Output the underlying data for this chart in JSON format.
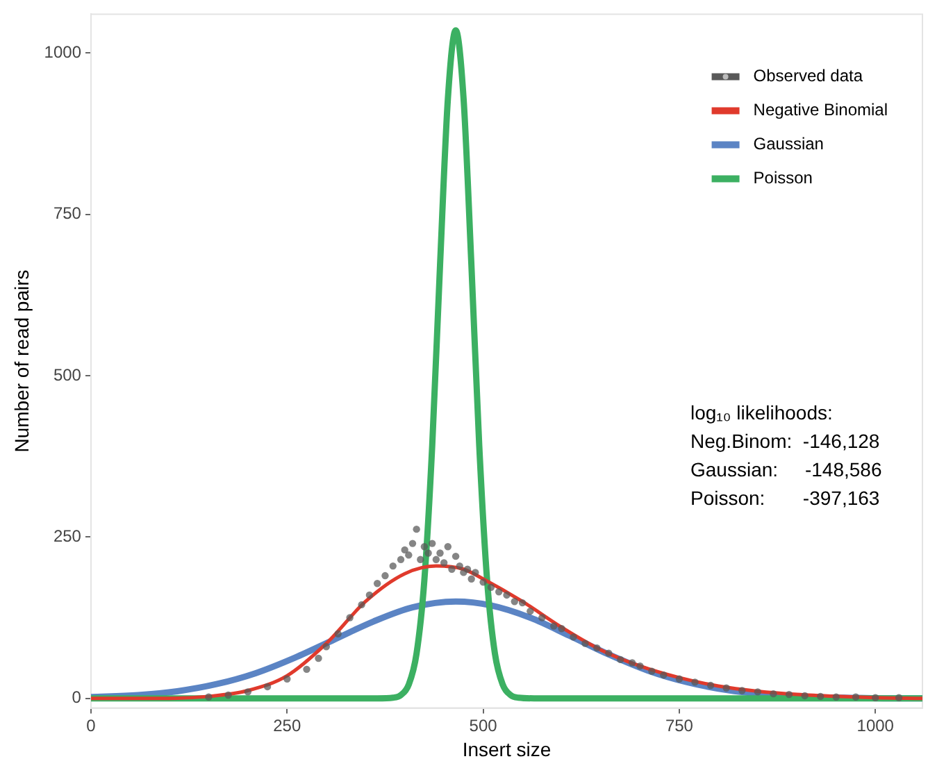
{
  "chart_data": {
    "type": "line",
    "xlabel": "Insert size",
    "ylabel": "Number of read pairs",
    "xlim": [
      0,
      1060
    ],
    "xticks": [
      0,
      250,
      500,
      750,
      1000
    ],
    "ylim": [
      -15,
      1060
    ],
    "yticks": [
      0,
      250,
      500,
      750,
      1000
    ],
    "grid": false,
    "legend": "top right",
    "marker": "none",
    "line_style": "solid",
    "annotations": [
      "log₁₀ likelihoods:",
      "Neg.Binom:  -146,128",
      "Gaussian:     -148,586",
      "Poisson:       -397,163"
    ],
    "series": [
      {
        "name": "Observed data",
        "type": "scatter",
        "marker": "circle",
        "color": "#595959",
        "x": [
          150,
          175,
          200,
          225,
          250,
          275,
          290,
          300,
          315,
          330,
          345,
          355,
          365,
          375,
          385,
          395,
          400,
          405,
          410,
          415,
          420,
          425,
          430,
          435,
          440,
          445,
          450,
          455,
          460,
          465,
          470,
          475,
          480,
          485,
          490,
          500,
          510,
          520,
          530,
          540,
          550,
          560,
          575,
          590,
          600,
          615,
          630,
          645,
          660,
          675,
          690,
          700,
          715,
          730,
          750,
          770,
          790,
          810,
          830,
          850,
          870,
          890,
          910,
          930,
          950,
          975,
          1000,
          1030
        ],
        "values": [
          2,
          5,
          10,
          18,
          30,
          45,
          62,
          80,
          100,
          125,
          145,
          160,
          178,
          190,
          205,
          215,
          230,
          222,
          240,
          262,
          215,
          235,
          225,
          240,
          215,
          225,
          210,
          235,
          200,
          220,
          205,
          195,
          200,
          185,
          195,
          180,
          172,
          165,
          160,
          150,
          148,
          135,
          125,
          112,
          108,
          95,
          85,
          78,
          70,
          60,
          55,
          50,
          42,
          36,
          30,
          25,
          20,
          16,
          12,
          10,
          7,
          6,
          4,
          3,
          2,
          2,
          1,
          1
        ]
      },
      {
        "name": "Negative Binomial",
        "color": "#e03a2c",
        "x": [
          0,
          100,
          150,
          200,
          250,
          300,
          350,
          400,
          440,
          475,
          500,
          550,
          600,
          650,
          700,
          750,
          800,
          850,
          900,
          950,
          1000,
          1060
        ],
        "values": [
          0,
          0,
          3,
          12,
          35,
          85,
          150,
          193,
          205,
          200,
          185,
          150,
          110,
          75,
          50,
          32,
          19,
          11,
          6,
          3,
          1,
          0
        ]
      },
      {
        "name": "Gaussian",
        "color": "#5b84c4",
        "x": [
          0,
          60,
          110,
          160,
          210,
          260,
          310,
          360,
          410,
          465,
          510,
          560,
          610,
          660,
          710,
          760,
          810,
          860,
          910,
          960,
          1010,
          1060
        ],
        "values": [
          2,
          5,
          11,
          22,
          39,
          63,
          91,
          119,
          141,
          150,
          144,
          125,
          97,
          68,
          43,
          25,
          13,
          6,
          2,
          1,
          0,
          0
        ]
      },
      {
        "name": "Poisson",
        "color": "#3cb062",
        "x": [
          0,
          365,
          385,
          395,
          405,
          415,
          425,
          435,
          445,
          455,
          465,
          475,
          485,
          495,
          505,
          515,
          525,
          535,
          545,
          565,
          1060
        ],
        "values": [
          0,
          0,
          1,
          5,
          21,
          69,
          183,
          391,
          671,
          929,
          1035,
          929,
          671,
          391,
          183,
          69,
          21,
          5,
          1,
          0,
          0
        ]
      }
    ]
  }
}
